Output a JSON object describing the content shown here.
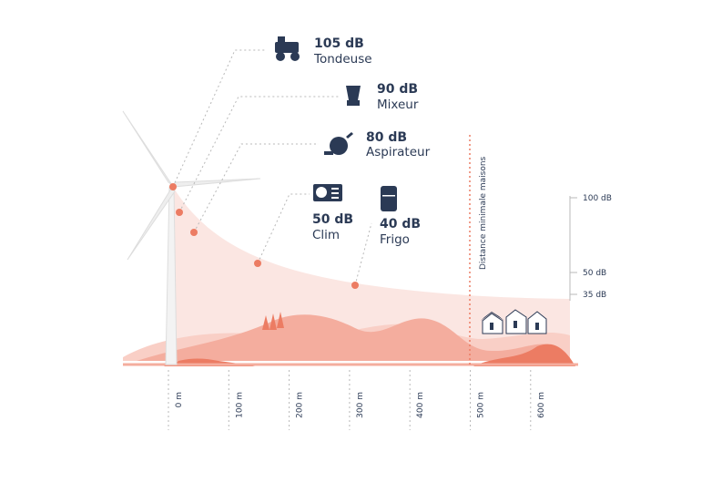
{
  "annotations": [
    {
      "level": "105 dB",
      "name": "Tondeuse"
    },
    {
      "level": "90 dB",
      "name": "Mixeur"
    },
    {
      "level": "80 dB",
      "name": "Aspirateur"
    },
    {
      "level": "50 dB",
      "name": "Clim"
    },
    {
      "level": "40 dB",
      "name": "Frigo"
    }
  ],
  "distance_ticks": [
    "0 m",
    "100 m",
    "200 m",
    "300 m",
    "400 m",
    "500 m",
    "600 m"
  ],
  "db_ticks": [
    "100 dB",
    "50 dB",
    "35 dB"
  ],
  "min_distance_label": "Distance minimale maisons"
}
